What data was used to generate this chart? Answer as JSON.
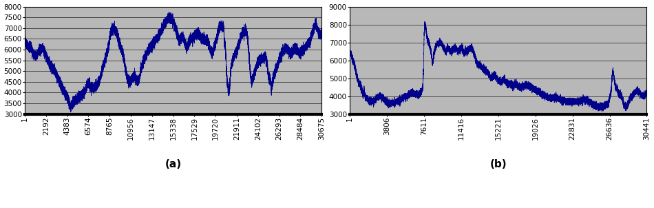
{
  "chart_a": {
    "title": "(a)",
    "xlim": [
      1,
      30675
    ],
    "ylim": [
      3000,
      8000
    ],
    "yticks": [
      3000,
      3500,
      4000,
      4500,
      5000,
      5500,
      6000,
      6500,
      7000,
      7500,
      8000
    ],
    "xticks": [
      1,
      2192,
      4383,
      6574,
      8765,
      10956,
      13147,
      15338,
      17529,
      19720,
      21911,
      24102,
      26293,
      28484,
      30675
    ],
    "line_color": "#00008B",
    "bg_color": "#B8B8B8"
  },
  "chart_b": {
    "title": "(b)",
    "xlim": [
      1,
      30441
    ],
    "ylim": [
      3000,
      9000
    ],
    "yticks": [
      3000,
      4000,
      5000,
      6000,
      7000,
      8000,
      9000
    ],
    "xticks": [
      1,
      3806,
      7611,
      11416,
      15221,
      19026,
      22831,
      26636,
      30441
    ],
    "line_color": "#00008B",
    "bg_color": "#B8B8B8"
  },
  "tick_fontsize": 7.5,
  "label_fontsize": 11
}
